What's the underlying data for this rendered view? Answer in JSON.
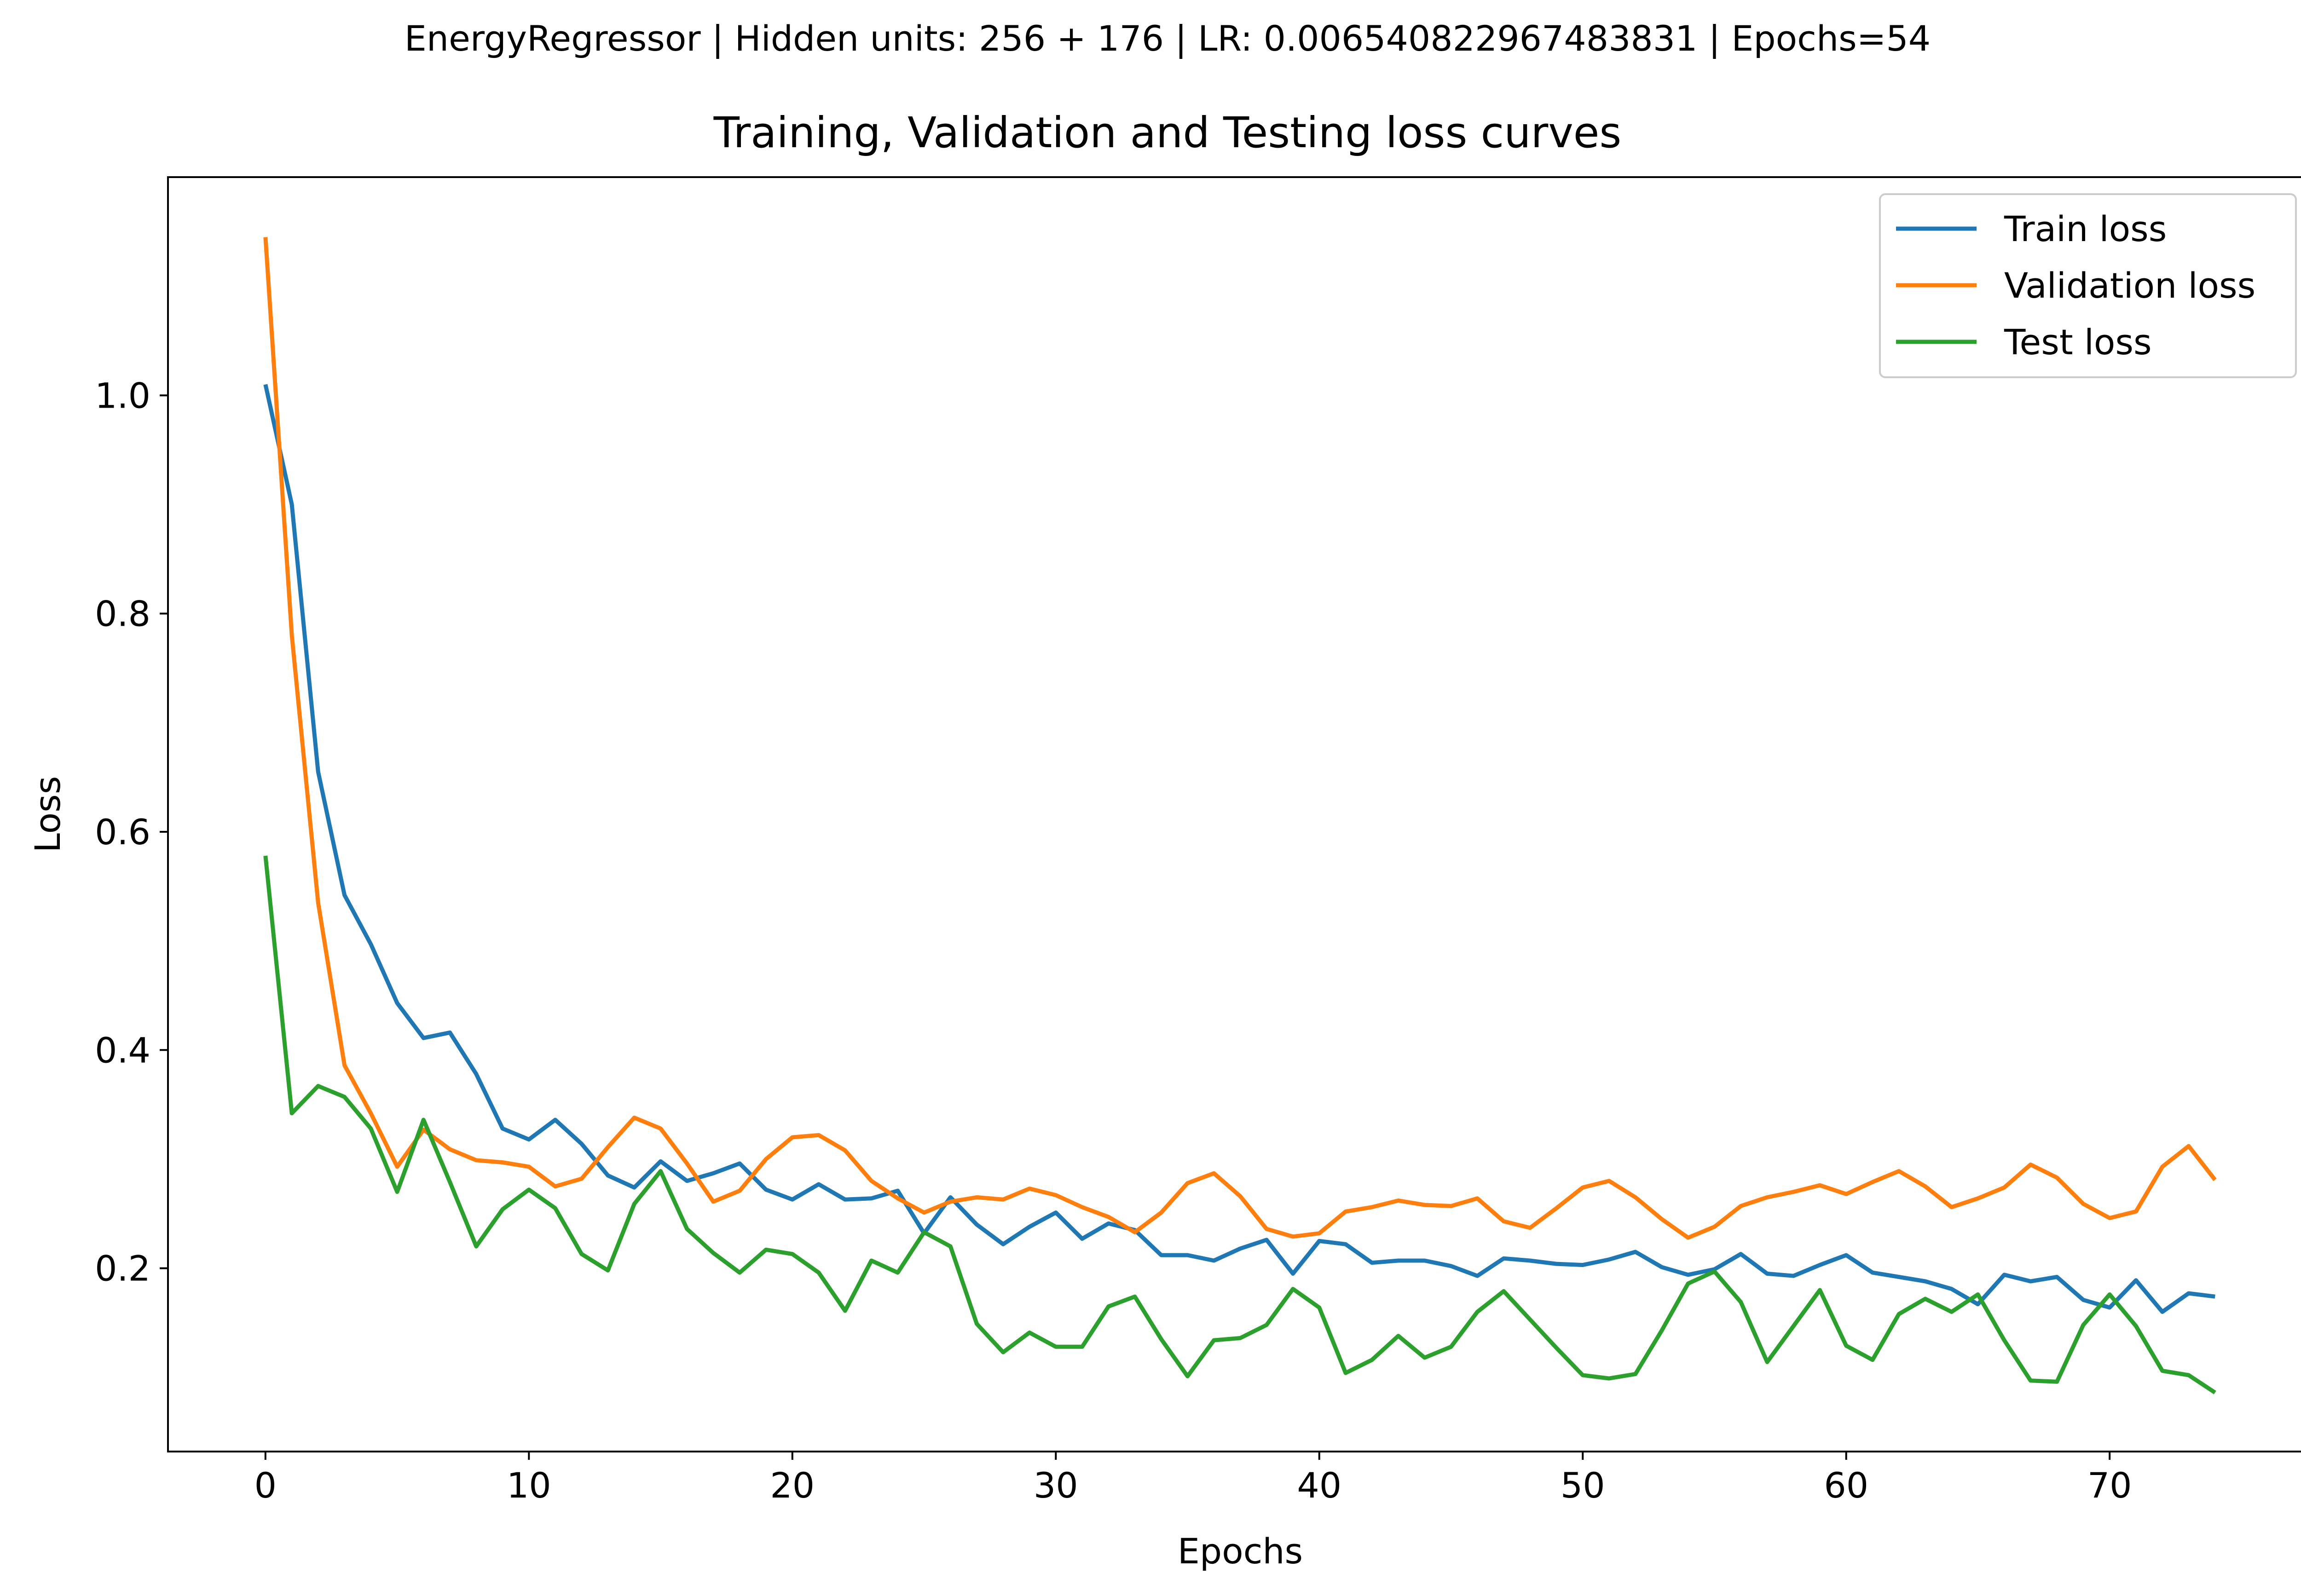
{
  "suptitle": "EnergyRegressor | Hidden units: 256 + 176 | LR: 0.006540822967483831 | Epochs=54",
  "chart_data": {
    "type": "line",
    "title": "Training, Validation and Testing loss curves",
    "xlabel": "Epochs",
    "ylabel": "Loss",
    "xlim": [
      -3.7,
      77.7
    ],
    "ylim": [
      0.032,
      1.2
    ],
    "xticks": [
      "0",
      "10",
      "20",
      "30",
      "40",
      "50",
      "60",
      "70"
    ],
    "yticks": [
      "0.2",
      "0.4",
      "0.6",
      "0.8",
      "1.0"
    ],
    "grid": false,
    "legend_position": "top-right",
    "x": [
      0,
      1,
      2,
      3,
      4,
      5,
      6,
      7,
      8,
      9,
      10,
      11,
      12,
      13,
      14,
      15,
      16,
      17,
      18,
      19,
      20,
      21,
      22,
      23,
      24,
      25,
      26,
      27,
      28,
      29,
      30,
      31,
      32,
      33,
      34,
      35,
      36,
      37,
      38,
      39,
      40,
      41,
      42,
      43,
      44,
      45,
      46,
      47,
      48,
      49,
      50,
      51,
      52,
      53,
      54,
      55,
      56,
      57,
      58,
      59,
      60,
      61,
      62,
      63,
      64,
      65,
      66,
      67,
      68,
      69,
      70,
      71,
      72,
      73,
      74
    ],
    "series": [
      {
        "name": "Train loss",
        "color": "#1f77b4",
        "values": [
          1.01,
          0.9,
          0.655,
          0.542,
          0.497,
          0.443,
          0.411,
          0.416,
          0.378,
          0.328,
          0.318,
          0.336,
          0.314,
          0.285,
          0.274,
          0.298,
          0.28,
          0.287,
          0.296,
          0.272,
          0.263,
          0.277,
          0.263,
          0.264,
          0.271,
          0.232,
          0.265,
          0.24,
          0.222,
          0.238,
          0.251,
          0.227,
          0.241,
          0.235,
          0.212,
          0.212,
          0.207,
          0.218,
          0.226,
          0.195,
          0.225,
          0.222,
          0.205,
          0.207,
          0.207,
          0.202,
          0.193,
          0.209,
          0.207,
          0.204,
          0.203,
          0.208,
          0.215,
          0.201,
          0.194,
          0.199,
          0.213,
          0.195,
          0.193,
          0.203,
          0.212,
          0.196,
          0.192,
          0.188,
          0.181,
          0.167,
          0.194,
          0.188,
          0.192,
          0.171,
          0.164,
          0.189,
          0.16,
          0.177,
          0.174
        ]
      },
      {
        "name": "Validation loss",
        "color": "#ff7f0e",
        "values": [
          1.145,
          0.78,
          0.535,
          0.386,
          0.342,
          0.293,
          0.327,
          0.309,
          0.299,
          0.297,
          0.293,
          0.275,
          0.282,
          0.311,
          0.338,
          0.328,
          0.296,
          0.261,
          0.271,
          0.3,
          0.32,
          0.322,
          0.308,
          0.28,
          0.264,
          0.251,
          0.261,
          0.265,
          0.263,
          0.273,
          0.267,
          0.256,
          0.247,
          0.233,
          0.251,
          0.278,
          0.287,
          0.266,
          0.236,
          0.229,
          0.232,
          0.252,
          0.256,
          0.262,
          0.258,
          0.257,
          0.264,
          0.243,
          0.237,
          0.255,
          0.274,
          0.28,
          0.265,
          0.245,
          0.228,
          0.238,
          0.257,
          0.265,
          0.27,
          0.276,
          0.268,
          0.279,
          0.289,
          0.275,
          0.256,
          0.264,
          0.274,
          0.295,
          0.283,
          0.259,
          0.246,
          0.252,
          0.293,
          0.312,
          0.281
        ]
      },
      {
        "name": "Test loss",
        "color": "#2ca02c",
        "values": [
          0.578,
          0.342,
          0.367,
          0.357,
          0.328,
          0.27,
          0.336,
          0.279,
          0.22,
          0.254,
          0.272,
          0.255,
          0.213,
          0.198,
          0.259,
          0.289,
          0.236,
          0.214,
          0.196,
          0.217,
          0.213,
          0.196,
          0.161,
          0.207,
          0.196,
          0.233,
          0.22,
          0.149,
          0.123,
          0.141,
          0.128,
          0.128,
          0.165,
          0.174,
          0.135,
          0.101,
          0.134,
          0.136,
          0.148,
          0.181,
          0.164,
          0.104,
          0.116,
          0.138,
          0.118,
          0.128,
          0.16,
          0.179,
          0.153,
          0.127,
          0.102,
          0.099,
          0.103,
          0.143,
          0.186,
          0.197,
          0.169,
          0.114,
          0.147,
          0.18,
          0.129,
          0.116,
          0.158,
          0.172,
          0.16,
          0.176,
          0.134,
          0.097,
          0.096,
          0.148,
          0.176,
          0.147,
          0.106,
          0.102,
          0.086
        ]
      }
    ]
  }
}
